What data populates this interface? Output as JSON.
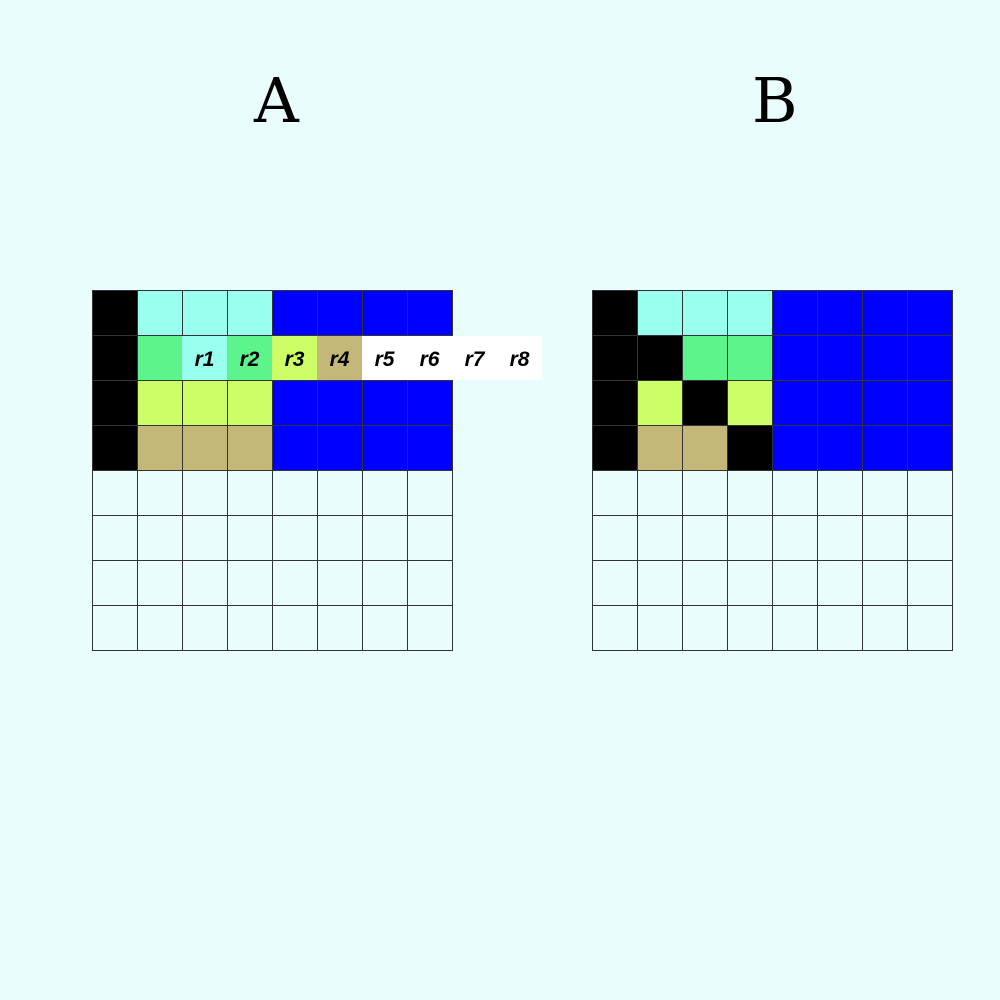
{
  "panels": [
    {
      "title": "A"
    },
    {
      "title": "B"
    }
  ],
  "colors": {
    "E": "#e9fdfd",
    "K": "#000000",
    "C": "#99ffee",
    "G": "#5cf58c",
    "Y": "#ccff66",
    "T": "#c4b878",
    "B": "#0000ff"
  },
  "grids": {
    "a": [
      "KCCCBBBB",
      "KGCGBBBB",
      "KYYYBBBB",
      "KTTTBBBB",
      "EEEEEEEE",
      "EEEEEEEE",
      "EEEEEEEE",
      "EEEEEEEE"
    ],
    "b": [
      "KCCCBBBB",
      "KKGGBBBB",
      "KYKYBBBB",
      "KTTKBBBB",
      "EEEEEEEE",
      "EEEEEEEE",
      "EEEEEEEE",
      "EEEEEEEE"
    ]
  },
  "legend": [
    {
      "label": "r1",
      "color": "#99ffee"
    },
    {
      "label": "r2",
      "color": "#5cf58c"
    },
    {
      "label": "r3",
      "color": "#ccff66"
    },
    {
      "label": "r4",
      "color": "#c4b878"
    },
    {
      "label": "r5",
      "color": "#ffffff"
    },
    {
      "label": "r6",
      "color": "#ffffff"
    },
    {
      "label": "r7",
      "color": "#ffffff"
    },
    {
      "label": "r8",
      "color": "#ffffff"
    }
  ]
}
